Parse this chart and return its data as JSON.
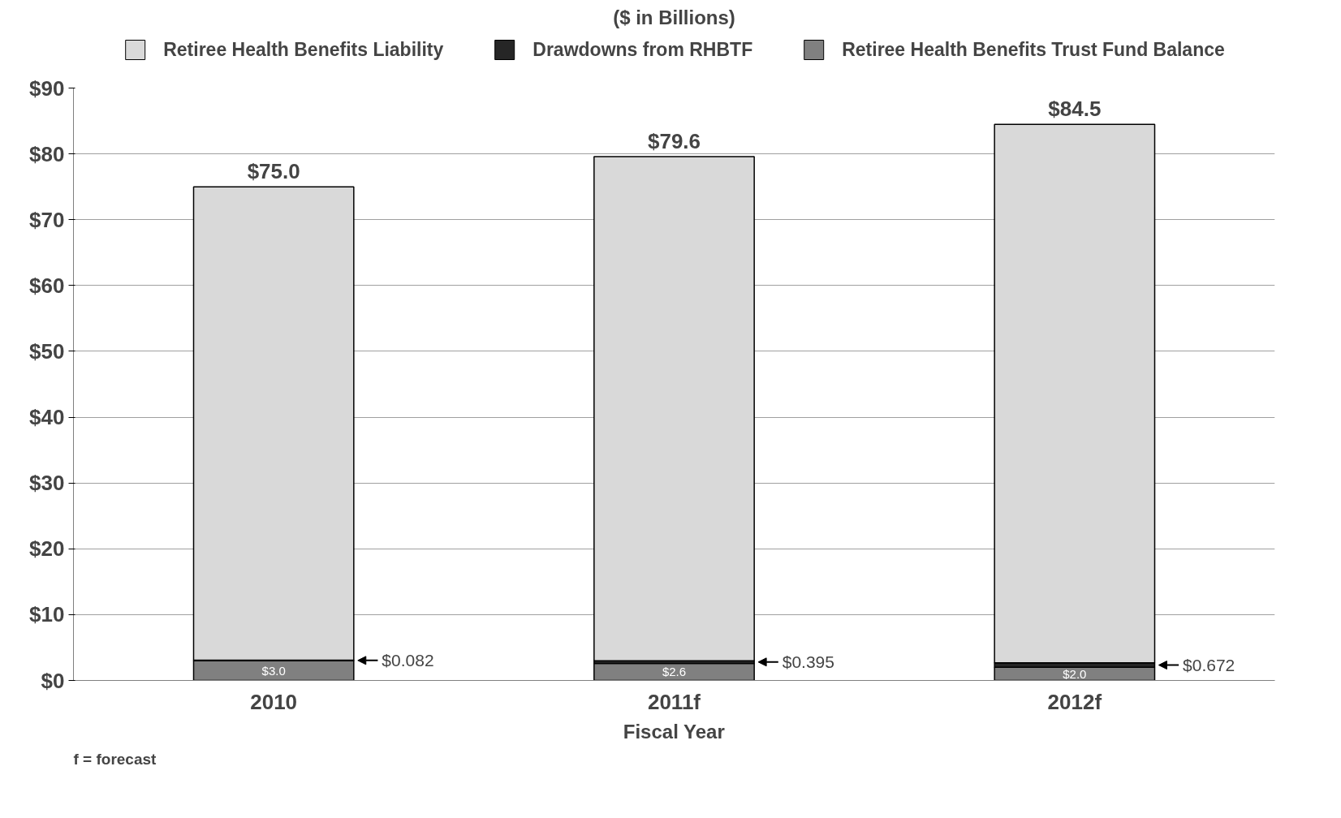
{
  "chart_data": {
    "type": "bar",
    "stacked": true,
    "title": "($ in Billions)",
    "xlabel": "Fiscal Year",
    "categories": [
      "2010",
      "2011f",
      "2012f"
    ],
    "series": [
      {
        "name": "Retiree Health Benefits Trust Fund Balance",
        "color": "#808080",
        "values": [
          3.0,
          2.6,
          2.0
        ],
        "value_labels": [
          "$3.0",
          "$2.6",
          "$2.0"
        ]
      },
      {
        "name": "Drawdowns from RHBTF",
        "color": "#262626",
        "values": [
          0.082,
          0.395,
          0.672
        ],
        "value_labels": [
          "$0.082",
          "$0.395",
          "$0.672"
        ]
      },
      {
        "name": "Retiree Health Benefits Liability",
        "color": "#d9d9d9",
        "values": [
          71.9,
          76.6,
          81.8
        ]
      }
    ],
    "totals": [
      "$75.0",
      "$79.6",
      "$84.5"
    ],
    "ylim": [
      0,
      90
    ],
    "yticks": [
      {
        "value": 0,
        "label": "$0"
      },
      {
        "value": 10,
        "label": "$10"
      },
      {
        "value": 20,
        "label": "$20"
      },
      {
        "value": 30,
        "label": "$30"
      },
      {
        "value": 40,
        "label": "$40"
      },
      {
        "value": 50,
        "label": "$50"
      },
      {
        "value": 60,
        "label": "$60"
      },
      {
        "value": 70,
        "label": "$70"
      },
      {
        "value": 80,
        "label": "$80"
      },
      {
        "value": 90,
        "label": "$90"
      }
    ],
    "grid": "y",
    "legend": "top",
    "annotations": [
      "f = forecast"
    ]
  }
}
